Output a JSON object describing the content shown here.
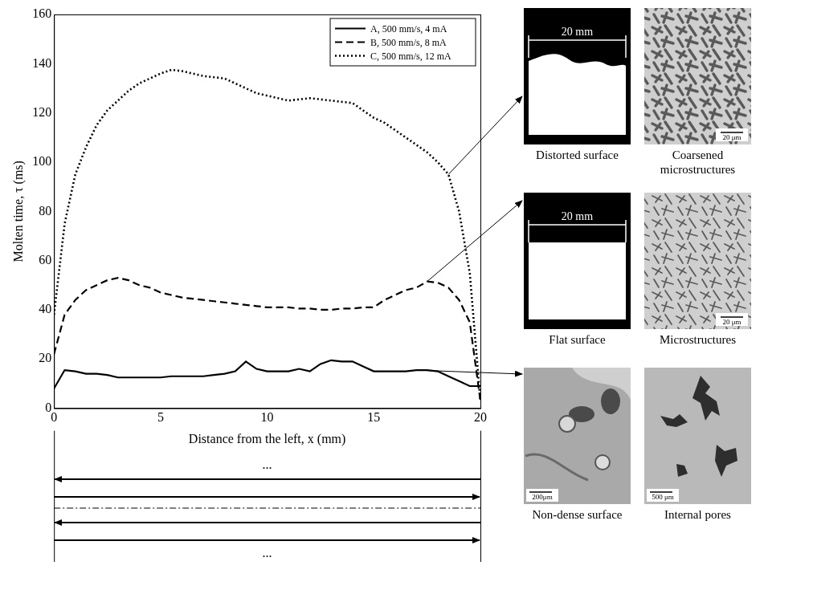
{
  "chart_data": {
    "type": "line",
    "x_label": "Distance from the left, x (mm)",
    "y_label": "Molten time, τ (ms)",
    "x": [
      0,
      0.5,
      1,
      1.5,
      2,
      2.5,
      3,
      3.5,
      4,
      4.5,
      5,
      5.5,
      6,
      6.5,
      7,
      7.5,
      8,
      8.5,
      9,
      9.5,
      10,
      10.5,
      11,
      11.5,
      12,
      12.5,
      13,
      13.5,
      14,
      14.5,
      15,
      15.5,
      16,
      16.5,
      17,
      17.5,
      18,
      18.5,
      19,
      19.5,
      20
    ],
    "series": [
      {
        "name": "A, 500 mm/s, 4 mA",
        "color": "#000000",
        "line_style": "solid",
        "values": [
          8,
          15.5,
          15,
          14,
          14,
          13.5,
          12.5,
          12.5,
          12.5,
          12.5,
          12.5,
          13,
          13,
          13,
          13,
          13.5,
          14,
          15,
          19,
          16,
          15,
          15,
          15,
          16,
          15,
          18,
          19.5,
          19,
          19,
          17,
          15,
          15,
          15,
          15,
          15.5,
          15.5,
          15,
          13,
          11,
          9,
          9
        ]
      },
      {
        "name": "B, 500 mm/s, 8 mA",
        "color": "#000000",
        "line_style": "dashed",
        "values": [
          22,
          38,
          44,
          48,
          50,
          52,
          53,
          52,
          50,
          49,
          47,
          46,
          45,
          44.5,
          44,
          43.5,
          43,
          42.5,
          42,
          41.5,
          41,
          41,
          41,
          40.5,
          40.5,
          40,
          40,
          40.5,
          40.5,
          41,
          41,
          44,
          46,
          48,
          49,
          51.5,
          51,
          49,
          44,
          35,
          3
        ]
      },
      {
        "name": "C, 500 mm/s, 12 mA",
        "color": "#000000",
        "line_style": "dotted",
        "values": [
          38,
          75,
          95,
          106,
          115,
          121,
          125,
          129,
          132,
          134,
          136,
          137.5,
          137,
          136,
          135,
          134.5,
          134,
          132,
          130,
          128,
          127,
          126,
          125,
          125.5,
          126,
          125.5,
          125,
          124.5,
          124,
          121,
          118,
          116,
          113,
          110,
          107,
          104,
          100,
          95,
          80,
          55,
          3
        ]
      }
    ],
    "xlim": [
      0,
      20
    ],
    "xticks": [
      0,
      5,
      10,
      15,
      20
    ],
    "ylim": [
      0,
      160
    ],
    "yticks": [
      0,
      20,
      40,
      60,
      80,
      100,
      120,
      140,
      160
    ],
    "grid": false,
    "legend": "upper right"
  },
  "images": [
    {
      "caption": "Distorted surface",
      "dimension": "20 mm"
    },
    {
      "caption": "Coarsened microstructures",
      "scale_bar": "20 μm"
    },
    {
      "caption": "Flat surface",
      "dimension": "20 mm"
    },
    {
      "caption": "Microstructures",
      "scale_bar": "20 μm"
    },
    {
      "caption": "Non-dense surface",
      "scale_bar": "200μm"
    },
    {
      "caption": "Internal pores",
      "scale_bar": "500 μm"
    }
  ],
  "scan_path": {
    "top_mark": "...",
    "bottom_mark": "..."
  }
}
